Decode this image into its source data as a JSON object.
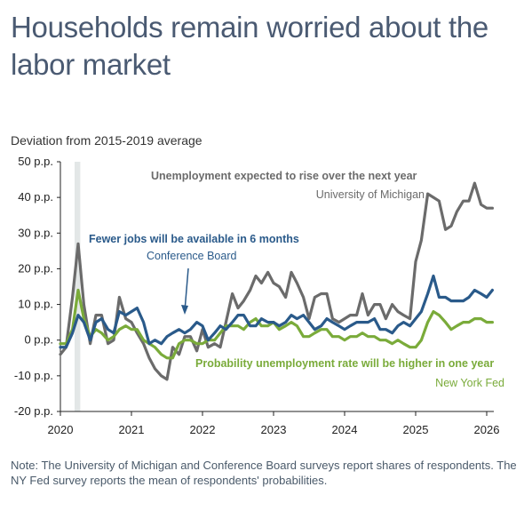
{
  "title": "Households remain worried about the labor market",
  "subtitle": "Deviation from 2015-2019 average",
  "note": "Note: The University of Michigan and Conference Board surveys report shares of respondents. The NY Fed survey reports the mean of respondents' probabilities.",
  "colors": {
    "michigan": "#6b6b6b",
    "conference": "#2a5a8a",
    "nyfed": "#7aab3a",
    "shade": "#e3e7e7"
  },
  "chart_data": {
    "type": "line",
    "title": "Households remain worried about the labor market",
    "ylabel": "Deviation from 2015-2019 average",
    "xlabel": "",
    "ylim": [
      -20,
      50
    ],
    "xlim": [
      2020.0,
      2026.1
    ],
    "y_ticks": [
      "50 p.p.",
      "40 p.p.",
      "30 p.p.",
      "20 p.p.",
      "10 p.p.",
      "0 p.p.",
      "-10 p.p.",
      "-20 p.p."
    ],
    "y_tick_values": [
      50,
      40,
      30,
      20,
      10,
      0,
      -10,
      -20
    ],
    "x_ticks": [
      "2020",
      "2021",
      "2022",
      "2023",
      "2024",
      "2025",
      "2026"
    ],
    "x_tick_values": [
      2020,
      2021,
      2022,
      2023,
      2024,
      2025,
      2026
    ],
    "shaded_region": [
      2020.2,
      2020.28
    ],
    "grid": false,
    "series": [
      {
        "name": "Unemployment expected to rise over the next year",
        "source": "University of Michigan",
        "color": "#6b6b6b",
        "x": [
          2020.0,
          2020.08,
          2020.17,
          2020.25,
          2020.33,
          2020.42,
          2020.5,
          2020.58,
          2020.67,
          2020.75,
          2020.83,
          2020.92,
          2021.0,
          2021.08,
          2021.17,
          2021.25,
          2021.33,
          2021.42,
          2021.5,
          2021.58,
          2021.67,
          2021.75,
          2021.83,
          2021.92,
          2022.0,
          2022.08,
          2022.17,
          2022.25,
          2022.33,
          2022.42,
          2022.5,
          2022.58,
          2022.67,
          2022.75,
          2022.83,
          2022.92,
          2023.0,
          2023.08,
          2023.17,
          2023.25,
          2023.33,
          2023.42,
          2023.5,
          2023.58,
          2023.67,
          2023.75,
          2023.83,
          2023.92,
          2024.0,
          2024.08,
          2024.17,
          2024.25,
          2024.33,
          2024.42,
          2024.5,
          2024.58,
          2024.67,
          2024.75,
          2024.83,
          2024.92,
          2025.0,
          2025.08,
          2025.17,
          2025.25,
          2025.33,
          2025.42,
          2025.5,
          2025.58,
          2025.67,
          2025.75,
          2025.83,
          2025.92,
          2026.0,
          2026.08
        ],
        "values": [
          -4,
          -2,
          12,
          27,
          10,
          -1,
          7,
          7,
          -1,
          0,
          12,
          6,
          5,
          2,
          -1,
          -5,
          -8,
          -10,
          -11,
          -2,
          -4,
          1,
          1,
          -3,
          3,
          -2,
          -1,
          -2,
          5,
          13,
          9,
          11,
          14,
          18,
          16,
          19,
          16,
          15,
          12,
          19,
          16,
          12,
          6,
          12,
          13,
          13,
          6,
          5,
          6,
          7,
          7,
          13,
          7,
          10,
          10,
          6,
          10,
          8,
          7,
          6,
          22,
          28,
          41,
          40,
          39,
          31,
          32,
          36,
          39,
          39,
          44,
          38,
          37,
          37
        ]
      },
      {
        "name": "Fewer jobs will be available in 6 months",
        "source": "Conference Board",
        "color": "#2a5a8a",
        "x": [
          2020.0,
          2020.08,
          2020.17,
          2020.25,
          2020.33,
          2020.42,
          2020.5,
          2020.58,
          2020.67,
          2020.75,
          2020.83,
          2020.92,
          2021.0,
          2021.08,
          2021.17,
          2021.25,
          2021.33,
          2021.42,
          2021.5,
          2021.58,
          2021.67,
          2021.75,
          2021.83,
          2021.92,
          2022.0,
          2022.08,
          2022.17,
          2022.25,
          2022.33,
          2022.42,
          2022.5,
          2022.58,
          2022.67,
          2022.75,
          2022.83,
          2022.92,
          2023.0,
          2023.08,
          2023.17,
          2023.25,
          2023.33,
          2023.42,
          2023.5,
          2023.58,
          2023.67,
          2023.75,
          2023.83,
          2023.92,
          2024.0,
          2024.08,
          2024.17,
          2024.25,
          2024.33,
          2024.42,
          2024.5,
          2024.58,
          2024.67,
          2024.75,
          2024.83,
          2024.92,
          2025.0,
          2025.08,
          2025.17,
          2025.25,
          2025.33,
          2025.42,
          2025.5,
          2025.58,
          2025.67,
          2025.75,
          2025.83,
          2025.92,
          2026.0,
          2026.08
        ],
        "values": [
          -2,
          -2,
          2,
          7,
          5,
          0,
          5,
          6,
          3,
          2,
          8,
          7,
          8,
          9,
          5,
          -1,
          0,
          -1,
          1,
          2,
          3,
          2,
          3,
          5,
          4,
          0,
          2,
          4,
          3,
          5,
          7,
          7,
          4,
          4,
          6,
          5,
          5,
          4,
          5,
          7,
          6,
          7,
          5,
          3,
          4,
          6,
          5,
          4,
          3,
          4,
          5,
          5,
          5,
          6,
          3,
          3,
          2,
          4,
          5,
          4,
          6,
          8,
          13,
          18,
          12,
          12,
          11,
          11,
          11,
          12,
          14,
          13,
          12,
          14
        ]
      },
      {
        "name": "Probability unemployment rate will be higher in one year",
        "source": "New York Fed",
        "color": "#7aab3a",
        "x": [
          2020.0,
          2020.08,
          2020.17,
          2020.25,
          2020.33,
          2020.42,
          2020.5,
          2020.58,
          2020.67,
          2020.75,
          2020.83,
          2020.92,
          2021.0,
          2021.08,
          2021.17,
          2021.25,
          2021.33,
          2021.42,
          2021.5,
          2021.58,
          2021.67,
          2021.75,
          2021.83,
          2021.92,
          2022.0,
          2022.08,
          2022.17,
          2022.25,
          2022.33,
          2022.42,
          2022.5,
          2022.58,
          2022.67,
          2022.75,
          2022.83,
          2022.92,
          2023.0,
          2023.08,
          2023.17,
          2023.25,
          2023.33,
          2023.42,
          2023.5,
          2023.58,
          2023.67,
          2023.75,
          2023.83,
          2023.92,
          2024.0,
          2024.08,
          2024.17,
          2024.25,
          2024.33,
          2024.42,
          2024.5,
          2024.58,
          2024.67,
          2024.75,
          2024.83,
          2024.92,
          2025.0,
          2025.08,
          2025.17,
          2025.25,
          2025.33,
          2025.42,
          2025.5,
          2025.58,
          2025.67,
          2025.75,
          2025.83,
          2025.92,
          2026.0,
          2026.08
        ],
        "values": [
          -1,
          -1,
          3,
          14,
          6,
          1,
          3,
          2,
          0,
          1,
          3,
          4,
          3,
          3,
          0,
          -1,
          -2,
          -4,
          -5,
          -5,
          -1,
          0,
          0,
          -1,
          -1,
          0,
          0,
          2,
          4,
          4,
          4,
          3,
          5,
          6,
          4,
          4,
          5,
          3,
          4,
          5,
          4,
          1,
          1,
          2,
          3,
          3,
          1,
          1,
          0,
          1,
          1,
          2,
          1,
          1,
          0,
          0,
          -1,
          0,
          -1,
          -2,
          -2,
          0,
          5,
          8,
          7,
          5,
          3,
          4,
          5,
          5,
          6,
          6,
          5,
          5
        ]
      }
    ]
  }
}
